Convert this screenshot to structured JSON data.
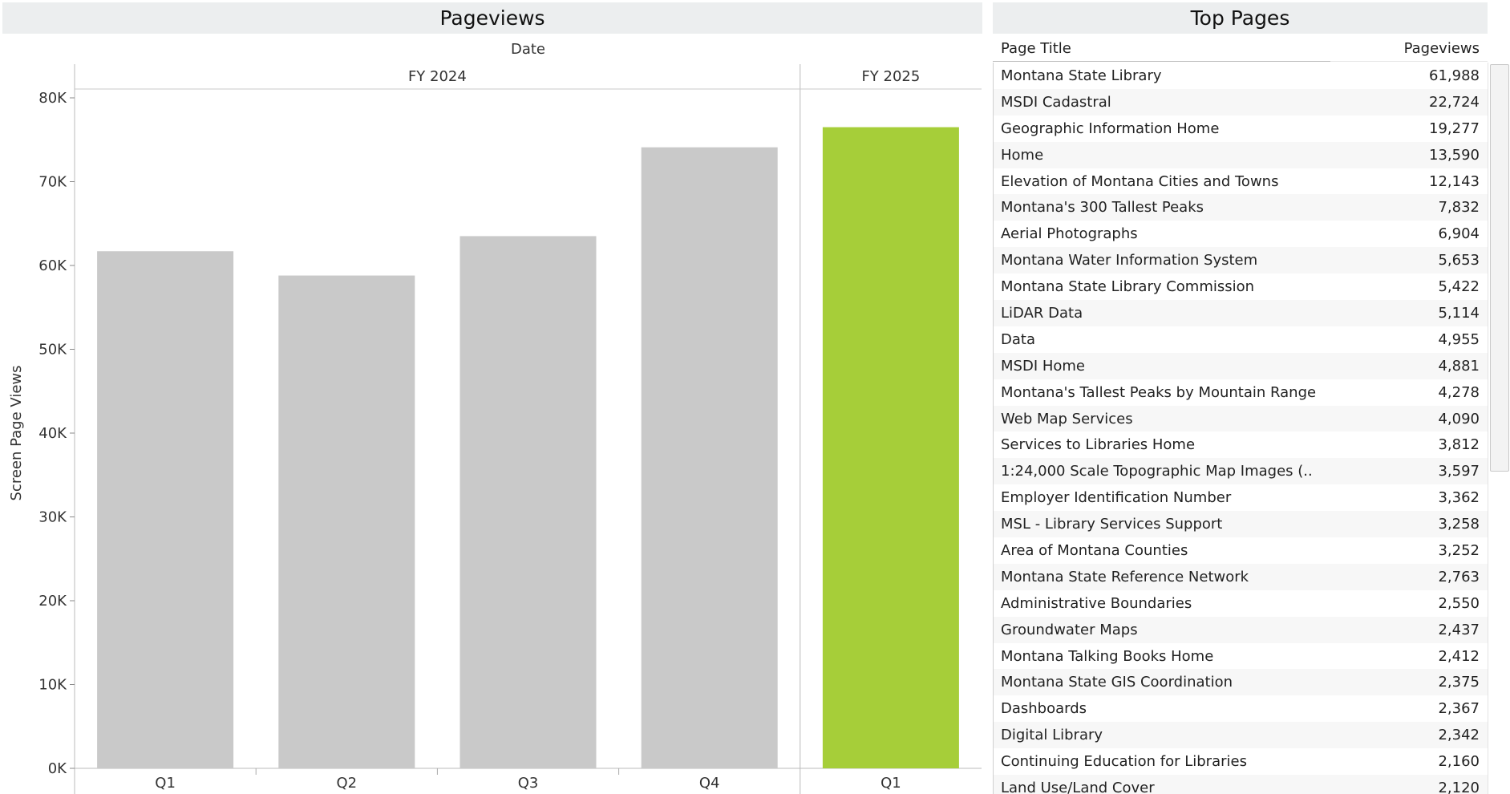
{
  "pageviews_panel": {
    "title": "Pageviews"
  },
  "top_pages_panel": {
    "title": "Top Pages",
    "col_title": "Page Title",
    "col_views": "Pageviews",
    "rows": [
      {
        "title": "Montana State Library",
        "views": "61,988"
      },
      {
        "title": "MSDI Cadastral",
        "views": "22,724"
      },
      {
        "title": "Geographic Information Home",
        "views": "19,277"
      },
      {
        "title": "Home",
        "views": "13,590"
      },
      {
        "title": "Elevation of Montana Cities and Towns",
        "views": "12,143"
      },
      {
        "title": "Montana's 300 Tallest Peaks",
        "views": "7,832"
      },
      {
        "title": "Aerial Photographs",
        "views": "6,904"
      },
      {
        "title": "Montana Water Information System",
        "views": "5,653"
      },
      {
        "title": "Montana State Library Commission",
        "views": "5,422"
      },
      {
        "title": "LiDAR Data",
        "views": "5,114"
      },
      {
        "title": "Data",
        "views": "4,955"
      },
      {
        "title": "MSDI Home",
        "views": "4,881"
      },
      {
        "title": "Montana's Tallest Peaks by Mountain Range",
        "views": "4,278"
      },
      {
        "title": "Web Map Services",
        "views": "4,090"
      },
      {
        "title": "Services to Libraries Home",
        "views": "3,812"
      },
      {
        "title": "1:24,000 Scale Topographic Map Images (..",
        "views": "3,597"
      },
      {
        "title": "Employer Identification Number",
        "views": "3,362"
      },
      {
        "title": "MSL - Library Services Support",
        "views": "3,258"
      },
      {
        "title": "Area of Montana Counties",
        "views": "3,252"
      },
      {
        "title": "Montana State Reference Network",
        "views": "2,763"
      },
      {
        "title": "Administrative Boundaries",
        "views": "2,550"
      },
      {
        "title": "Groundwater Maps",
        "views": "2,437"
      },
      {
        "title": "Montana Talking Books Home",
        "views": "2,412"
      },
      {
        "title": "Montana State GIS Coordination",
        "views": "2,375"
      },
      {
        "title": "Dashboards",
        "views": "2,367"
      },
      {
        "title": "Digital Library",
        "views": "2,342"
      },
      {
        "title": "Continuing Education for Libraries",
        "views": "2,160"
      },
      {
        "title": "Land Use/Land Cover",
        "views": "2,120"
      }
    ]
  },
  "chart_data": {
    "type": "bar",
    "title": "Pageviews",
    "column_header": "Date",
    "groups": [
      {
        "label": "FY 2024",
        "categories": [
          "Q1",
          "Q2",
          "Q3",
          "Q4"
        ]
      },
      {
        "label": "FY 2025",
        "categories": [
          "Q1"
        ]
      }
    ],
    "categories": [
      "Q1",
      "Q2",
      "Q3",
      "Q4",
      "Q1"
    ],
    "values": [
      61700,
      58800,
      63500,
      74100,
      76500
    ],
    "highlight": [
      false,
      false,
      false,
      false,
      true
    ],
    "ylabel": "Screen Page Views",
    "ylim": [
      0,
      80000
    ],
    "yticks": [
      "0K",
      "10K",
      "20K",
      "30K",
      "40K",
      "50K",
      "60K",
      "70K",
      "80K"
    ],
    "colors": {
      "default": "#c9c9c9",
      "highlight": "#a6ce39"
    }
  }
}
